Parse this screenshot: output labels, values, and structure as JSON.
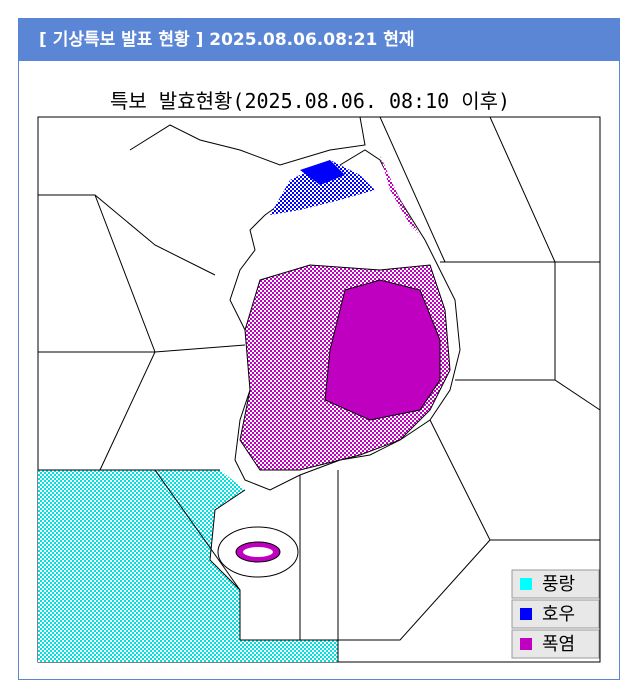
{
  "header": {
    "title": "[ 기상특보 발표 현황 ] 2025.08.06.08:21 현재"
  },
  "map": {
    "title": "특보 발효현황(2025.08.06. 08:10 이후)",
    "legend": [
      {
        "label": "풍랑",
        "color": "#00ffff"
      },
      {
        "label": "호우",
        "color": "#0000ff"
      },
      {
        "label": "폭염",
        "color": "#c000c0"
      }
    ]
  }
}
